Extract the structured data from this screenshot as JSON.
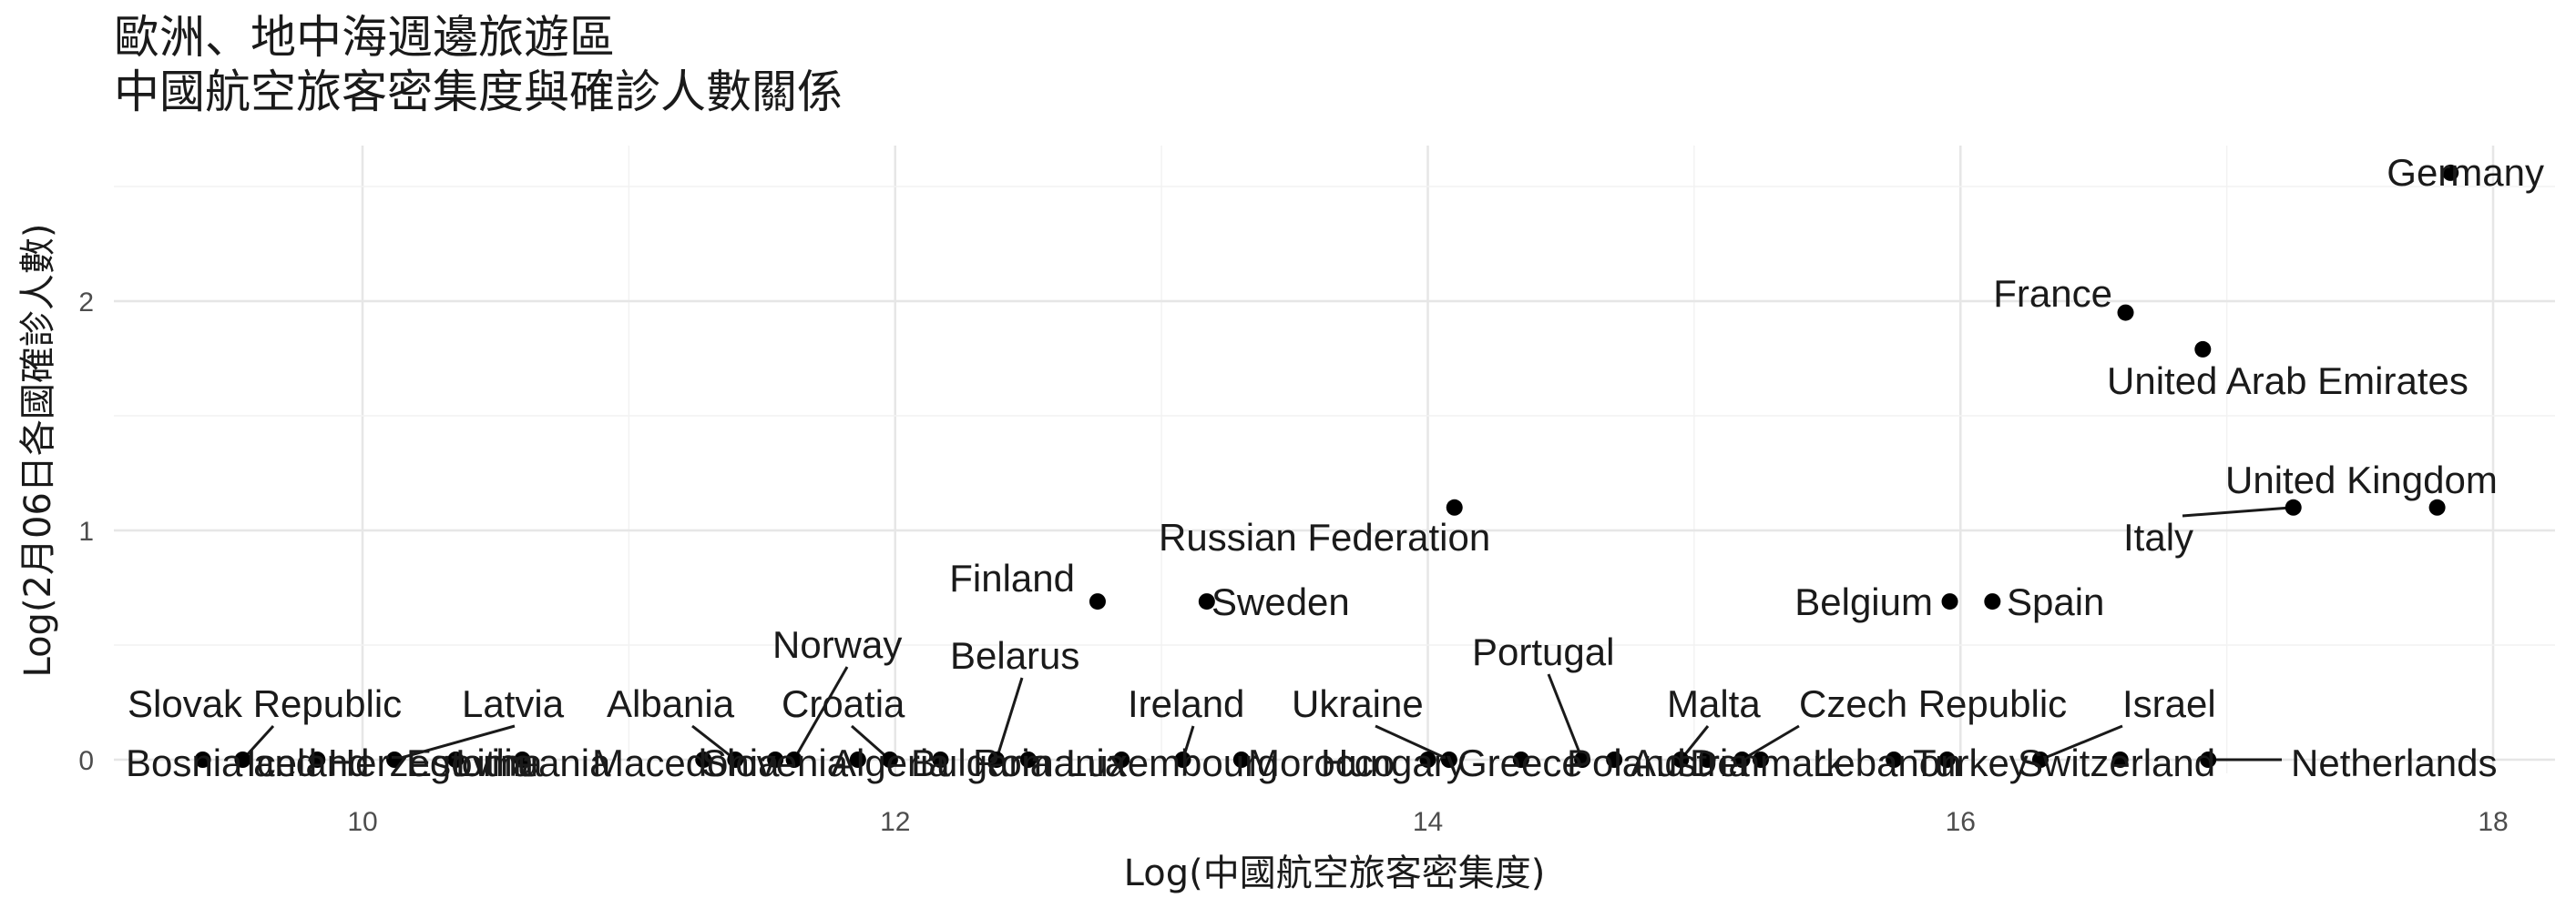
{
  "chart_data": {
    "type": "scatter",
    "title_lines": [
      "歐洲、地中海週邊旅遊區",
      "中國航空旅客密集度與確診人數關係"
    ],
    "xlabel": "Log(中國航空旅客密集度)",
    "ylabel": "Log(2月06日各國確診人數)",
    "xlim": [
      9.27,
      18.3
    ],
    "ylim": [
      -0.1,
      2.6
    ],
    "xticks": [
      10,
      12,
      14,
      16,
      18
    ],
    "yticks": [
      0,
      1,
      2
    ],
    "grid": true,
    "legend": "none",
    "points": [
      {
        "name": "Germany",
        "x": 17.84,
        "y": 2.56
      },
      {
        "name": "France",
        "x": 16.62,
        "y": 1.95
      },
      {
        "name": "United Arab Emirates",
        "x": 16.91,
        "y": 1.79
      },
      {
        "name": "United Kingdom",
        "x": 17.79,
        "y": 1.1
      },
      {
        "name": "Italy",
        "x": 17.25,
        "y": 1.1
      },
      {
        "name": "Russian Federation",
        "x": 14.1,
        "y": 1.1
      },
      {
        "name": "Finland",
        "x": 12.76,
        "y": 0.69
      },
      {
        "name": "Sweden",
        "x": 13.17,
        "y": 0.69
      },
      {
        "name": "Belgium",
        "x": 15.96,
        "y": 0.69
      },
      {
        "name": "Spain",
        "x": 16.12,
        "y": 0.69
      },
      {
        "name": "Slovak Republic",
        "x": 9.55,
        "y": 0
      },
      {
        "name": "Bosnia and Herzegovina",
        "x": 9.4,
        "y": 0
      },
      {
        "name": "Iceland",
        "x": 9.83,
        "y": 0
      },
      {
        "name": "Latvia",
        "x": 10.12,
        "y": 0
      },
      {
        "name": "Estonia",
        "x": 10.35,
        "y": 0
      },
      {
        "name": "Lithuania",
        "x": 10.6,
        "y": 0
      },
      {
        "name": "Albania",
        "x": 11.4,
        "y": 0
      },
      {
        "name": "Macedonia",
        "x": 11.28,
        "y": 0
      },
      {
        "name": "Slovenia",
        "x": 11.55,
        "y": 0
      },
      {
        "name": "Norway",
        "x": 11.62,
        "y": 0
      },
      {
        "name": "Croatia",
        "x": 11.98,
        "y": 0
      },
      {
        "name": "Algeria",
        "x": 11.86,
        "y": 0
      },
      {
        "name": "Bulgaria",
        "x": 12.17,
        "y": 0
      },
      {
        "name": "Belarus",
        "x": 12.38,
        "y": 0
      },
      {
        "name": "Romania",
        "x": 12.5,
        "y": 0
      },
      {
        "name": "Luxembourg",
        "x": 12.85,
        "y": 0
      },
      {
        "name": "Ireland",
        "x": 13.08,
        "y": 0
      },
      {
        "name": "Morocco",
        "x": 13.3,
        "y": 0
      },
      {
        "name": "Ukraine",
        "x": 14.08,
        "y": 0
      },
      {
        "name": "Hungary",
        "x": 14.0,
        "y": 0
      },
      {
        "name": "Greece",
        "x": 14.35,
        "y": 0
      },
      {
        "name": "Portugal",
        "x": 14.58,
        "y": 0
      },
      {
        "name": "Poland",
        "x": 14.7,
        "y": 0
      },
      {
        "name": "Malta",
        "x": 14.95,
        "y": 0
      },
      {
        "name": "Austria",
        "x": 15.05,
        "y": 0
      },
      {
        "name": "Czech Republic",
        "x": 15.18,
        "y": 0
      },
      {
        "name": "Denmark",
        "x": 15.25,
        "y": 0
      },
      {
        "name": "Lebanon",
        "x": 15.75,
        "y": 0
      },
      {
        "name": "Turkey",
        "x": 15.95,
        "y": 0
      },
      {
        "name": "Israel",
        "x": 16.3,
        "y": 0
      },
      {
        "name": "Switzerland",
        "x": 16.6,
        "y": 0
      },
      {
        "name": "Netherlands",
        "x": 16.93,
        "y": 0
      }
    ]
  }
}
